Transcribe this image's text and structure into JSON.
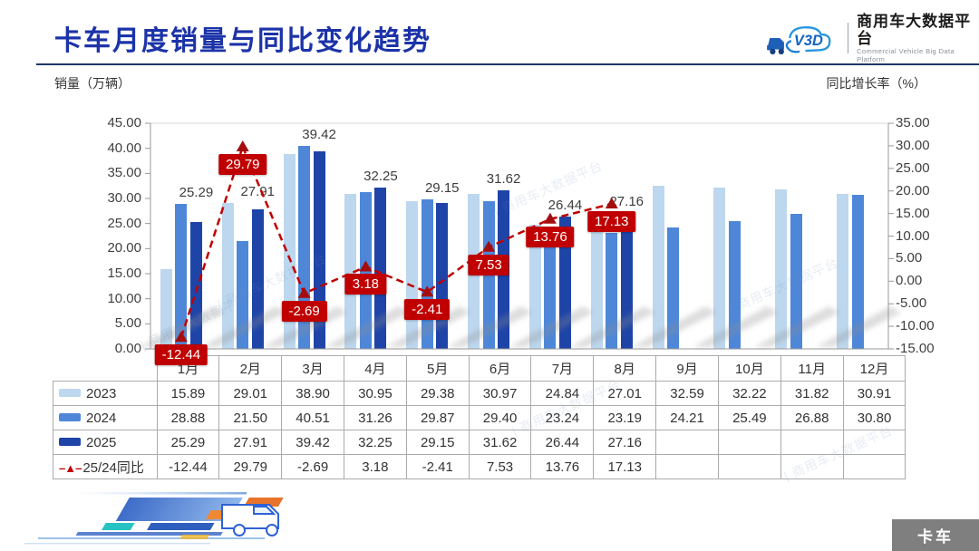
{
  "header": {
    "title": "卡车月度销量与同比变化趋势",
    "logo": {
      "icon": "V3D",
      "name": "商用车大数据平台",
      "subtitle": "Commercial Vehicle Big Data Platform"
    }
  },
  "axis_labels": {
    "left": "销量（万辆）",
    "right": "同比增长率（%）"
  },
  "axes": {
    "left_ticks": [
      "45.00",
      "40.00",
      "35.00",
      "30.00",
      "25.00",
      "20.00",
      "15.00",
      "10.00",
      "5.00",
      "0.00"
    ],
    "right_ticks": [
      "35.00",
      "30.00",
      "25.00",
      "20.00",
      "15.00",
      "10.00",
      "5.00",
      "0.00",
      "-5.00",
      "-10.00",
      "-15.00"
    ]
  },
  "chart_data": {
    "type": "bar+line",
    "title": "卡车月度销量与同比变化趋势",
    "categories": [
      "1月",
      "2月",
      "3月",
      "4月",
      "5月",
      "6月",
      "7月",
      "8月",
      "9月",
      "10月",
      "11月",
      "12月"
    ],
    "ylabel_left": "销量（万辆）",
    "ylabel_right": "同比增长率（%）",
    "ylim_left": [
      0,
      45
    ],
    "ylim_right": [
      -15,
      35
    ],
    "grid": false,
    "legend_position": "table-left",
    "bar_series": [
      {
        "name": "2023",
        "color": "#BDD7EE",
        "values": [
          15.89,
          29.01,
          38.9,
          30.95,
          29.38,
          30.97,
          24.84,
          27.01,
          32.59,
          32.22,
          31.82,
          30.91
        ]
      },
      {
        "name": "2024",
        "color": "#4E87D8",
        "values": [
          28.88,
          21.5,
          40.51,
          31.26,
          29.87,
          29.4,
          23.24,
          23.19,
          24.21,
          25.49,
          26.88,
          30.8
        ]
      },
      {
        "name": "2025",
        "color": "#1E44A8",
        "values": [
          25.29,
          27.91,
          39.42,
          32.25,
          29.15,
          31.62,
          26.44,
          27.16,
          null,
          null,
          null,
          null
        ]
      }
    ],
    "line_series": {
      "name": "25/24同比",
      "color": "#C00000",
      "values": [
        -12.44,
        29.79,
        -2.69,
        3.18,
        -2.41,
        7.53,
        13.76,
        17.13,
        null,
        null,
        null,
        null
      ]
    }
  },
  "watermark": "商用车大数据平台",
  "footer": {
    "badge": "卡车"
  }
}
